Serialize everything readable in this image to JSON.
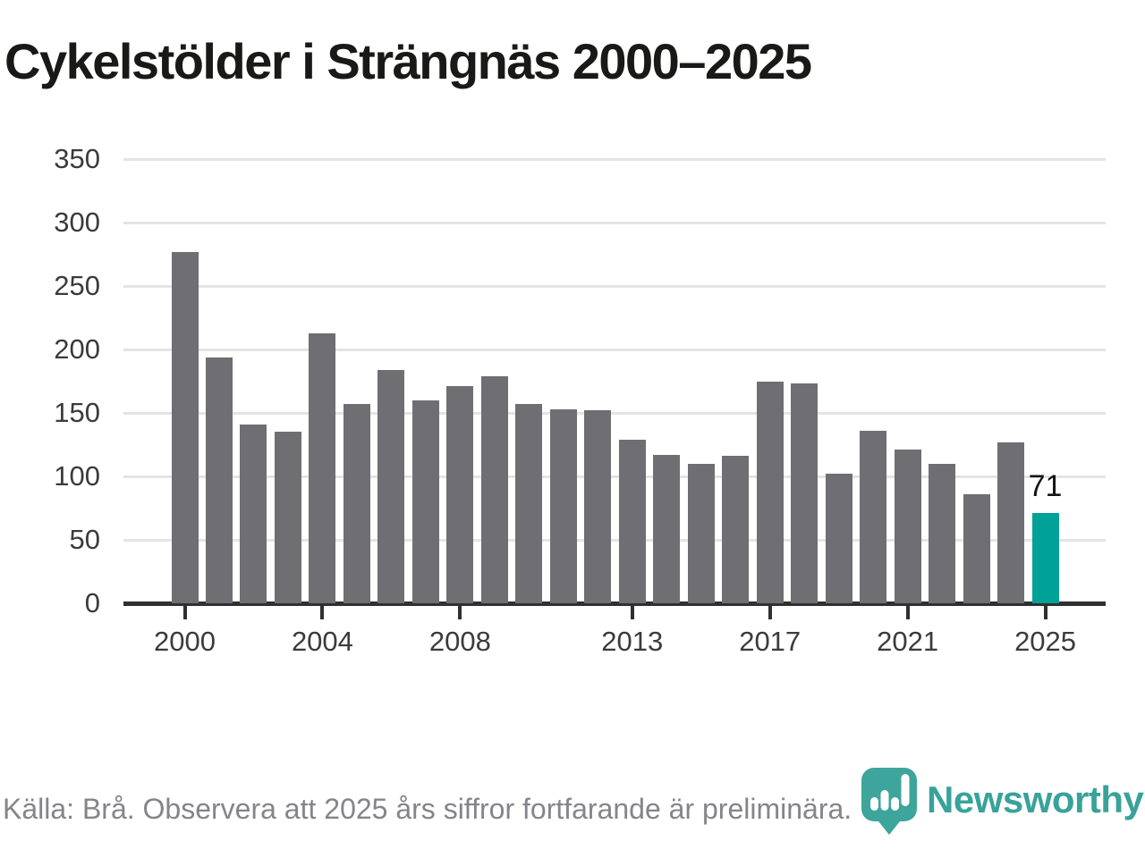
{
  "title": "Cykelstölder i Strängnäs 2000–2025",
  "chart_data": {
    "type": "bar",
    "title": "Cykelstölder i Strängnäs 2000–2025",
    "xlabel": "",
    "ylabel": "",
    "categories": [
      2000,
      2001,
      2002,
      2003,
      2004,
      2005,
      2006,
      2007,
      2008,
      2009,
      2010,
      2011,
      2012,
      2013,
      2014,
      2015,
      2016,
      2017,
      2018,
      2019,
      2020,
      2021,
      2022,
      2023,
      2024,
      2025
    ],
    "values": [
      277,
      194,
      141,
      135,
      213,
      157,
      184,
      160,
      171,
      179,
      157,
      153,
      152,
      129,
      117,
      110,
      116,
      175,
      173,
      102,
      136,
      121,
      110,
      86,
      127,
      71
    ],
    "ylim": [
      0,
      350
    ],
    "yticks": [
      0,
      50,
      100,
      150,
      200,
      250,
      300,
      350
    ],
    "xticks": [
      2000,
      2004,
      2008,
      2013,
      2017,
      2021,
      2025
    ],
    "grid": true,
    "legend": "none",
    "bar_color": "#6e6e73",
    "highlight": {
      "year": 2025,
      "value": 71,
      "label": "71",
      "color": "#00a197"
    }
  },
  "footer": {
    "source": "Källa: Brå. Observera att 2025 års siffror fortfarande är preliminära."
  },
  "logo": {
    "text": "Newsworthy",
    "icon": "newsworthy-chart-pin-icon",
    "color": "#3da59c"
  }
}
